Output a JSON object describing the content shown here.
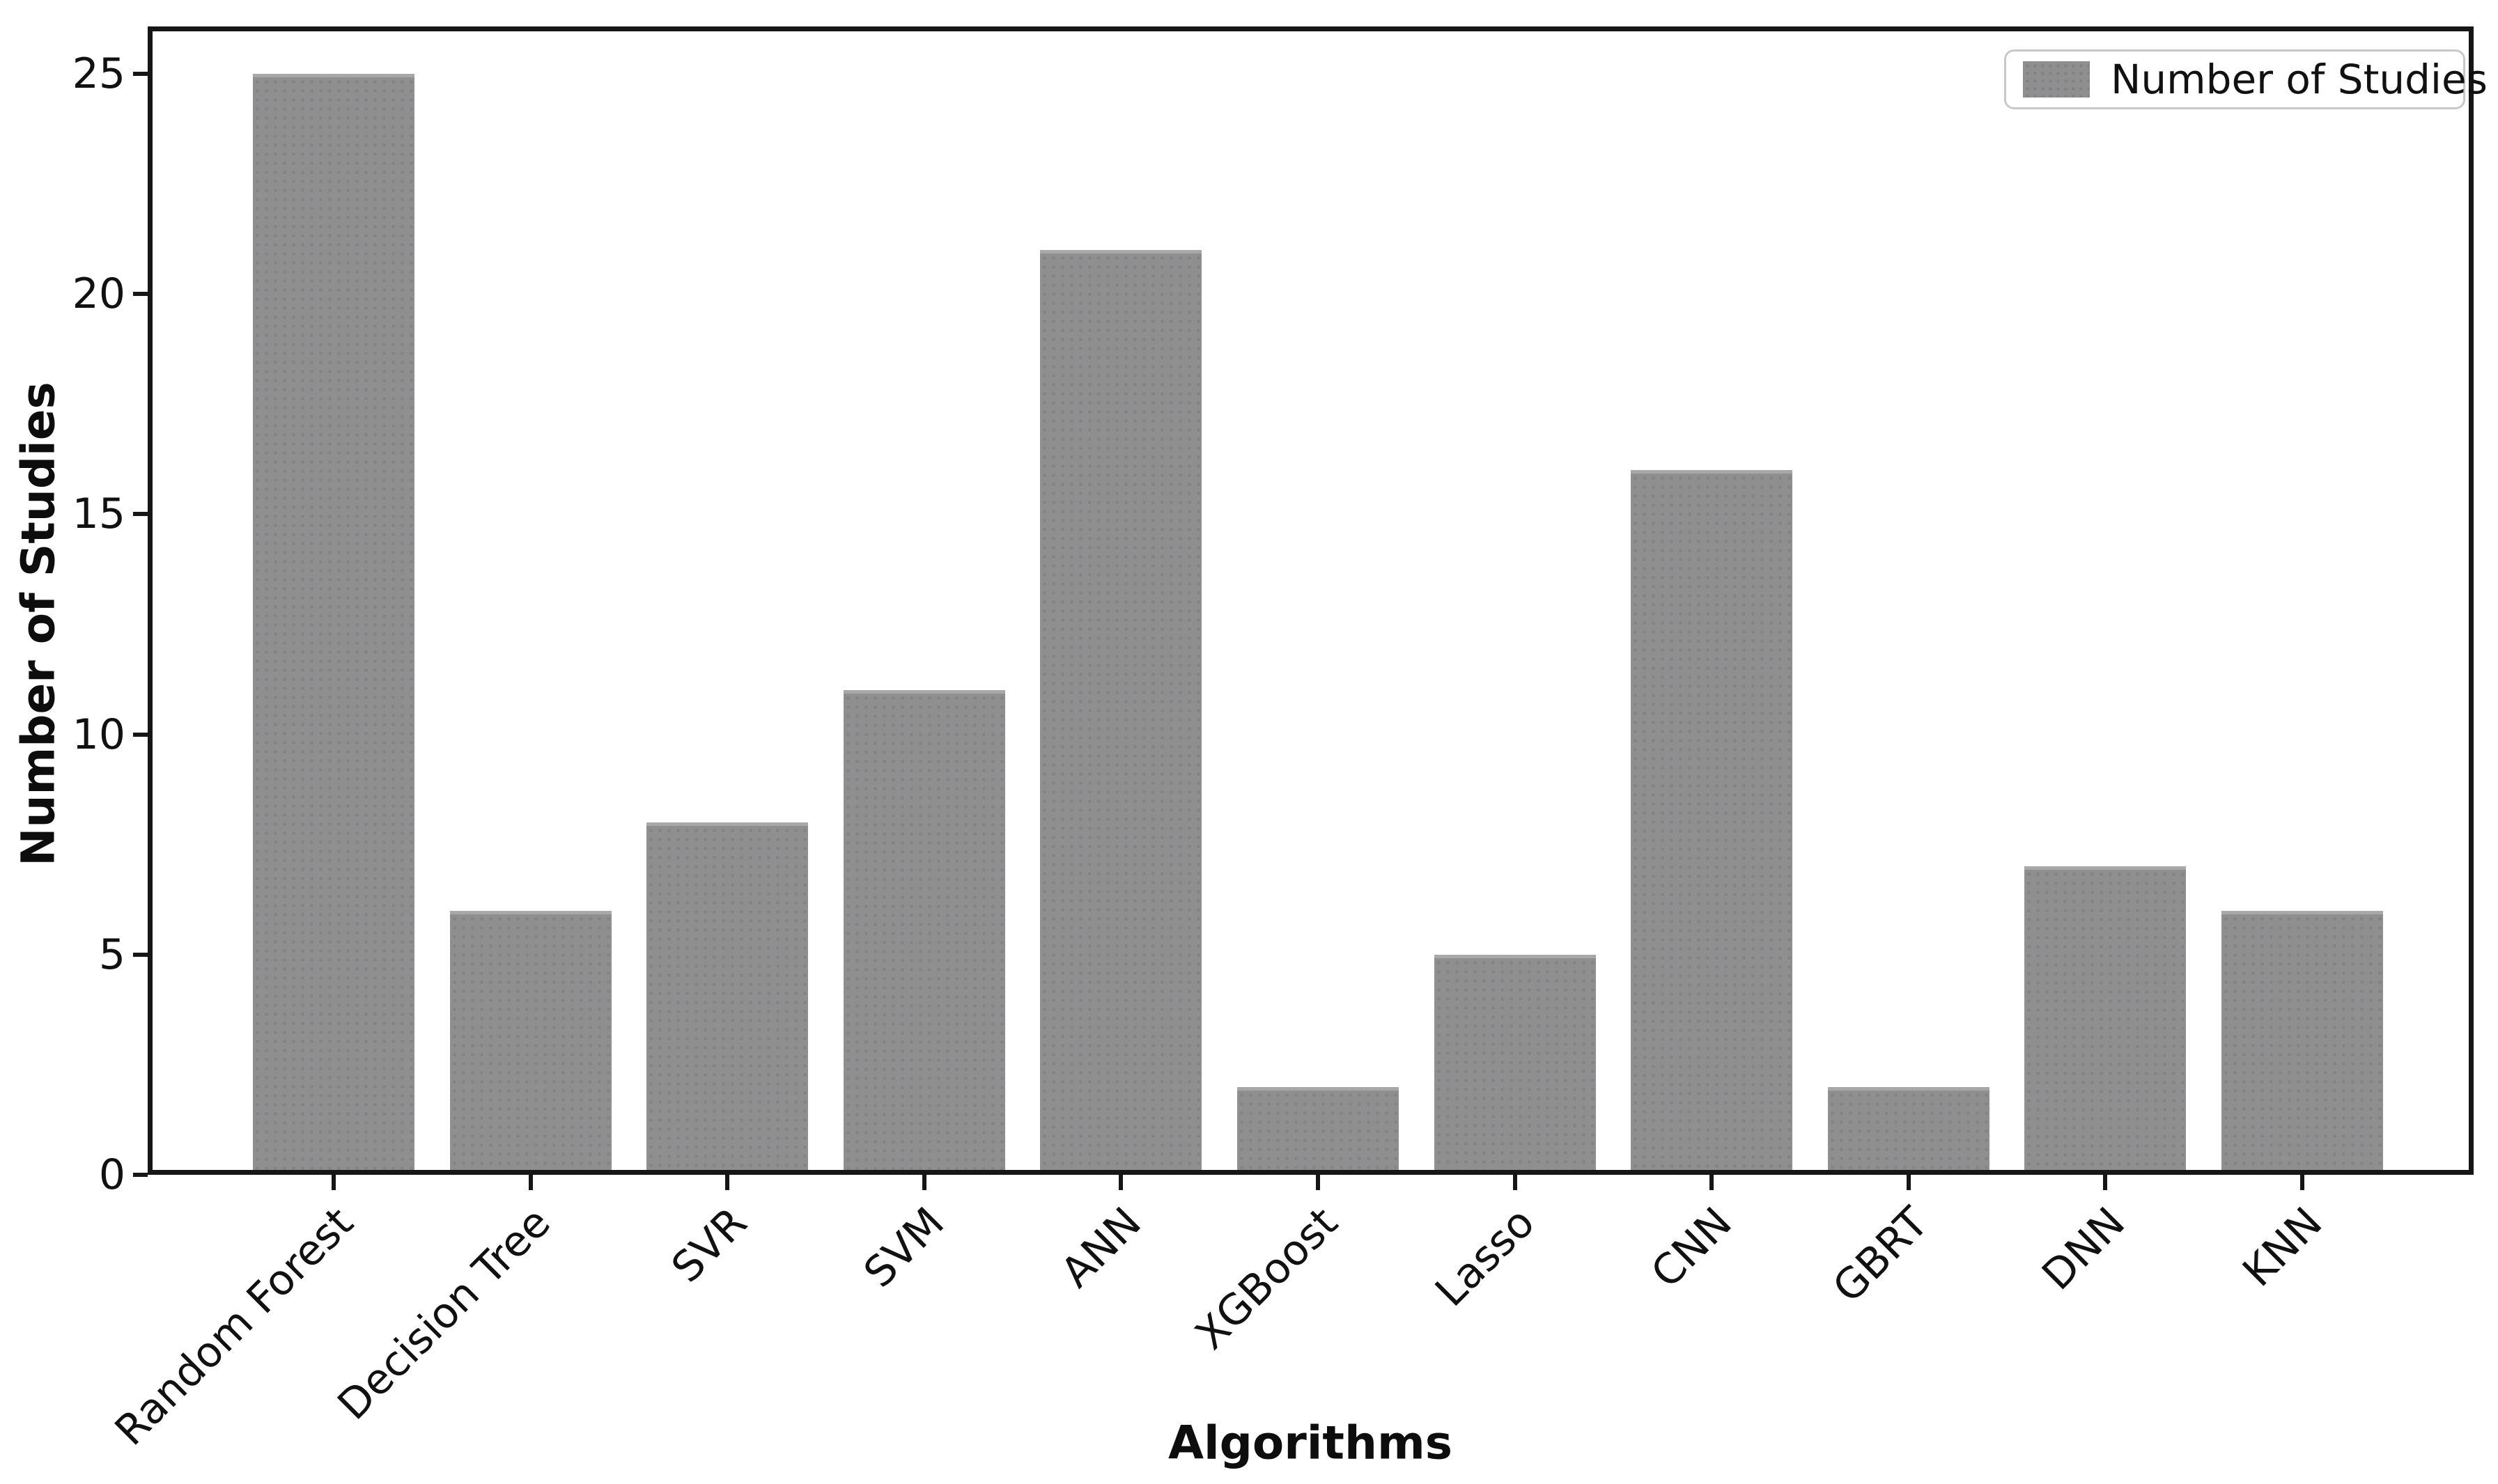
{
  "chart_data": {
    "type": "bar",
    "title": "",
    "categories": [
      "Random Forest",
      "Decision Tree",
      "SVR",
      "SVM",
      "ANN",
      "XGBoost",
      "Lasso",
      "CNN",
      "GBRT",
      "DNN",
      "KNN"
    ],
    "values": [
      25,
      6,
      8,
      11,
      21,
      2,
      5,
      16,
      2,
      7,
      6
    ],
    "series_name": "Number of Studies",
    "xlabel": "Algorithms",
    "ylabel": "Number of Studies",
    "yticks": [
      0,
      5,
      10,
      15,
      20,
      25
    ],
    "ylim": [
      0,
      26
    ],
    "xtick_rotation_deg": 45,
    "grid": false,
    "bar_color": "#8f8f8f",
    "spine_color": "#161616",
    "legend": {
      "position": "upper right",
      "label": "Number of Studies",
      "swatch_color": "#8f8f8f"
    }
  }
}
